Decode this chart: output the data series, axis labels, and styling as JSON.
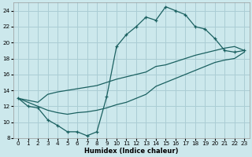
{
  "background_color": "#cce8ec",
  "grid_color": "#aacdd4",
  "line_color": "#1a6060",
  "xlabel": "Humidex (Indice chaleur)",
  "xlim": [
    -0.5,
    23.5
  ],
  "ylim": [
    8,
    25
  ],
  "yticks": [
    8,
    10,
    12,
    14,
    16,
    18,
    20,
    22,
    24
  ],
  "xticks": [
    0,
    1,
    2,
    3,
    4,
    5,
    6,
    7,
    8,
    9,
    10,
    11,
    12,
    13,
    14,
    15,
    16,
    17,
    18,
    19,
    20,
    21,
    22,
    23
  ],
  "line1_x": [
    0,
    1,
    2,
    3,
    4,
    5,
    6,
    7,
    8,
    9,
    10,
    11,
    12,
    13,
    14,
    15,
    16,
    17,
    18,
    19,
    20,
    21,
    22,
    23
  ],
  "line1_y": [
    13.0,
    12.0,
    11.8,
    10.3,
    9.6,
    8.8,
    8.8,
    8.3,
    8.8,
    13.2,
    19.5,
    21.0,
    22.0,
    23.2,
    22.8,
    24.5,
    24.0,
    23.5,
    22.0,
    21.7,
    20.5,
    19.0,
    18.8,
    19.0
  ],
  "line2_x": [
    0,
    2,
    3,
    4,
    5,
    6,
    7,
    8,
    9,
    10,
    11,
    12,
    13,
    14,
    15,
    16,
    17,
    18,
    19,
    20,
    21,
    22,
    23
  ],
  "line2_y": [
    13.0,
    12.5,
    13.5,
    13.8,
    14.0,
    14.2,
    14.4,
    14.6,
    15.0,
    15.4,
    15.7,
    16.0,
    16.3,
    17.0,
    17.2,
    17.6,
    18.0,
    18.4,
    18.7,
    19.0,
    19.3,
    19.5,
    19.0
  ],
  "line3_x": [
    0,
    2,
    3,
    4,
    5,
    6,
    7,
    8,
    9,
    10,
    11,
    12,
    13,
    14,
    15,
    16,
    17,
    18,
    19,
    20,
    21,
    22,
    23
  ],
  "line3_y": [
    13.0,
    12.0,
    11.5,
    11.2,
    11.0,
    11.2,
    11.3,
    11.5,
    11.8,
    12.2,
    12.5,
    13.0,
    13.5,
    14.5,
    15.0,
    15.5,
    16.0,
    16.5,
    17.0,
    17.5,
    17.8,
    18.0,
    18.8
  ]
}
